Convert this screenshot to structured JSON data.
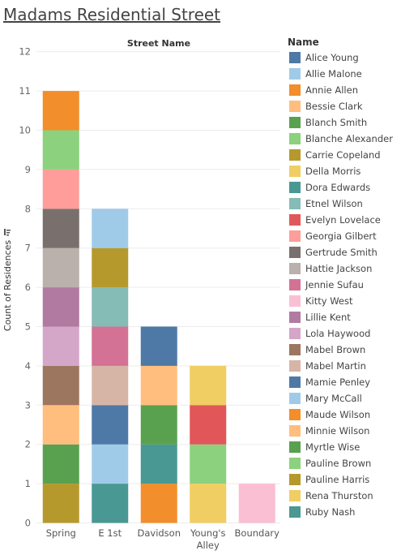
{
  "title": "Madams Residential Street",
  "chart_data": {
    "type": "bar",
    "stacked": true,
    "column_header": "Street Name",
    "ylabel": "Count of Residences",
    "ylim": [
      0,
      12
    ],
    "yticks": [
      0,
      1,
      2,
      3,
      4,
      5,
      6,
      7,
      8,
      9,
      10,
      11,
      12
    ],
    "categories": [
      "Spring",
      "E 1st",
      "Davidson",
      "Young's Alley",
      "Boundary"
    ],
    "legend_title": "Name",
    "legend_position": "right",
    "legend": [
      {
        "name": "Alice Young",
        "color": "#4e79a7"
      },
      {
        "name": "Allie Malone",
        "color": "#a0cbe8"
      },
      {
        "name": "Annie Allen",
        "color": "#f28e2b"
      },
      {
        "name": "Bessie Clark",
        "color": "#ffbe7d"
      },
      {
        "name": "Blanch Smith",
        "color": "#59a14f"
      },
      {
        "name": "Blanche Alexander",
        "color": "#8cd17d"
      },
      {
        "name": "Carrie Copeland",
        "color": "#b6992d"
      },
      {
        "name": "Della Morris",
        "color": "#f1ce63"
      },
      {
        "name": "Dora Edwards",
        "color": "#499894"
      },
      {
        "name": "Etnel Wilson",
        "color": "#86bcb6"
      },
      {
        "name": "Evelyn Lovelace",
        "color": "#e15759"
      },
      {
        "name": "Georgia Gilbert",
        "color": "#ff9d9a"
      },
      {
        "name": "Gertrude Smith",
        "color": "#79706e"
      },
      {
        "name": "Hattie Jackson",
        "color": "#bab0ac"
      },
      {
        "name": "Jennie Sufau",
        "color": "#d37295"
      },
      {
        "name": "Kitty West",
        "color": "#fabfd2"
      },
      {
        "name": "Lillie Kent",
        "color": "#b07aa1"
      },
      {
        "name": "Lola Haywood",
        "color": "#d4a6c8"
      },
      {
        "name": "Mabel Brown",
        "color": "#9d7660"
      },
      {
        "name": "Mabel Martin",
        "color": "#d7b5a6"
      },
      {
        "name": "Mamie Penley",
        "color": "#4e79a7"
      },
      {
        "name": "Mary McCall",
        "color": "#a0cbe8"
      },
      {
        "name": "Maude Wilson",
        "color": "#f28e2b"
      },
      {
        "name": "Minnie Wilson",
        "color": "#ffbe7d"
      },
      {
        "name": "Myrtle Wise",
        "color": "#59a14f"
      },
      {
        "name": "Pauline Brown",
        "color": "#8cd17d"
      },
      {
        "name": "Pauline Harris",
        "color": "#b6992d"
      },
      {
        "name": "Rena Thurston",
        "color": "#f1ce63"
      },
      {
        "name": "Ruby Nash",
        "color": "#499894"
      }
    ],
    "stacks": [
      {
        "category": "Spring",
        "segments": [
          {
            "name": "Pauline Harris",
            "value": 1
          },
          {
            "name": "Myrtle Wise",
            "value": 1
          },
          {
            "name": "Minnie Wilson",
            "value": 1
          },
          {
            "name": "Mabel Brown",
            "value": 1
          },
          {
            "name": "Lola Haywood",
            "value": 1
          },
          {
            "name": "Lillie Kent",
            "value": 1
          },
          {
            "name": "Hattie Jackson",
            "value": 1
          },
          {
            "name": "Gertrude Smith",
            "value": 1
          },
          {
            "name": "Georgia Gilbert",
            "value": 1
          },
          {
            "name": "Blanche Alexander",
            "value": 1
          },
          {
            "name": "Annie Allen",
            "value": 1
          }
        ]
      },
      {
        "category": "E 1st",
        "segments": [
          {
            "name": "Ruby Nash",
            "value": 1
          },
          {
            "name": "Mary McCall",
            "value": 1
          },
          {
            "name": "Mamie Penley",
            "value": 1
          },
          {
            "name": "Mabel Martin",
            "value": 1
          },
          {
            "name": "Jennie Sufau",
            "value": 1
          },
          {
            "name": "Etnel Wilson",
            "value": 1
          },
          {
            "name": "Carrie Copeland",
            "value": 1
          },
          {
            "name": "Allie Malone",
            "value": 1
          }
        ]
      },
      {
        "category": "Davidson",
        "segments": [
          {
            "name": "Maude Wilson",
            "value": 1
          },
          {
            "name": "Dora Edwards",
            "value": 1
          },
          {
            "name": "Blanch Smith",
            "value": 1
          },
          {
            "name": "Bessie Clark",
            "value": 1
          },
          {
            "name": "Alice Young",
            "value": 1
          }
        ]
      },
      {
        "category": "Young's Alley",
        "segments": [
          {
            "name": "Rena Thurston",
            "value": 1
          },
          {
            "name": "Pauline Brown",
            "value": 1
          },
          {
            "name": "Evelyn Lovelace",
            "value": 1
          },
          {
            "name": "Della Morris",
            "value": 1
          }
        ]
      },
      {
        "category": "Boundary",
        "segments": [
          {
            "name": "Kitty West",
            "value": 1
          }
        ]
      }
    ]
  }
}
